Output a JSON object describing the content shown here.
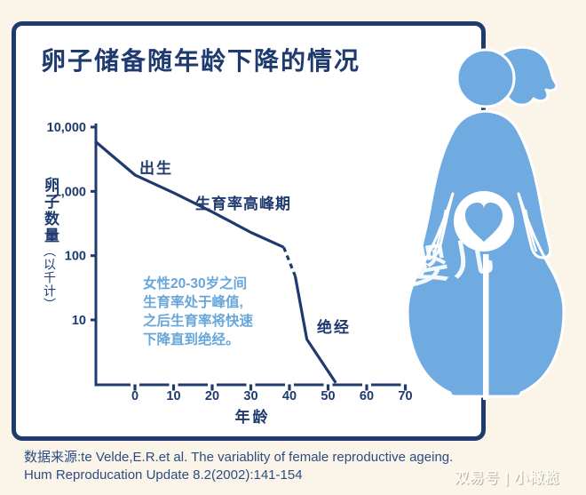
{
  "card": {
    "title": "卵子储备随年龄下降的情况",
    "border_color": "#1e3a6e",
    "background": "#ffffff"
  },
  "page_background": "#faf5e8",
  "chart_data": {
    "type": "line",
    "title": "卵子储备随年龄下降的情况",
    "xlabel": "年龄",
    "ylabel": "卵子数量(以千计)",
    "y_scale": "log",
    "xlim": [
      -10.5,
      70
    ],
    "ylim": [
      1,
      10000
    ],
    "grid": false,
    "line_color": "#1e3a6e",
    "x_ticks": [
      {
        "v": 0,
        "label": "0"
      },
      {
        "v": 10,
        "label": "10"
      },
      {
        "v": 20,
        "label": "20"
      },
      {
        "v": 30,
        "label": "30"
      },
      {
        "v": 40,
        "label": "40"
      },
      {
        "v": 50,
        "label": "50"
      },
      {
        "v": 60,
        "label": "60"
      },
      {
        "v": 70,
        "label": "70"
      }
    ],
    "y_ticks": [
      {
        "v": 10000,
        "label": "10,000"
      },
      {
        "v": 1000,
        "label": "1,000"
      },
      {
        "v": 100,
        "label": "100"
      },
      {
        "v": 10,
        "label": "10"
      }
    ],
    "series": [
      {
        "name": "egg-count-prenatal-to-peak",
        "style": "solid",
        "points": [
          [
            -10.3,
            6000
          ],
          [
            0,
            1800
          ],
          [
            10,
            950
          ],
          [
            20,
            480
          ],
          [
            30,
            230
          ],
          [
            38.5,
            135
          ]
        ]
      },
      {
        "name": "egg-count-projected-decline",
        "style": "dashed",
        "points": [
          [
            38.5,
            135
          ],
          [
            41.5,
            48
          ]
        ]
      },
      {
        "name": "egg-count-to-menopause",
        "style": "solid",
        "points": [
          [
            41.5,
            48
          ],
          [
            44.5,
            5
          ],
          [
            52,
            1.05
          ]
        ]
      }
    ],
    "annotations": [
      {
        "text": "出生",
        "near_age": 5
      },
      {
        "text": "生育率高峰期",
        "near_age": 20
      },
      {
        "text": "绝经",
        "near_age": 50
      }
    ]
  },
  "labels": {
    "birth": "出生",
    "peak": "生育率高峰期",
    "menopause": "绝经",
    "xlabel": "年龄",
    "ylabel_main": "卵子数量",
    "ylabel_paren": "（以千计）"
  },
  "description": {
    "line1": "女性20-30岁之间",
    "line2": "生育率处于峰值,",
    "line3": "之后生育率将快速",
    "line4": "下降直到绝经。"
  },
  "source": {
    "line1": "数据来源:te Velde,E.R.et al. The variablity of female reproductive ageing.",
    "line2": "Hum Reproducation Update 8.2(2002):141-154"
  },
  "watermarks": {
    "center": "婴儿",
    "bottom_right": "双易号 | 小橄榄"
  },
  "figure": {
    "name": "pregnant-woman-with-heart-icon",
    "color": "#6fabe1",
    "outline": "#ffffff"
  },
  "colors": {
    "navy": "#1e3a6e",
    "light_blue": "#6fabe1",
    "light_blue_text": "#68a6da",
    "cream": "#faf5e8",
    "source_text": "#2b4c86"
  }
}
